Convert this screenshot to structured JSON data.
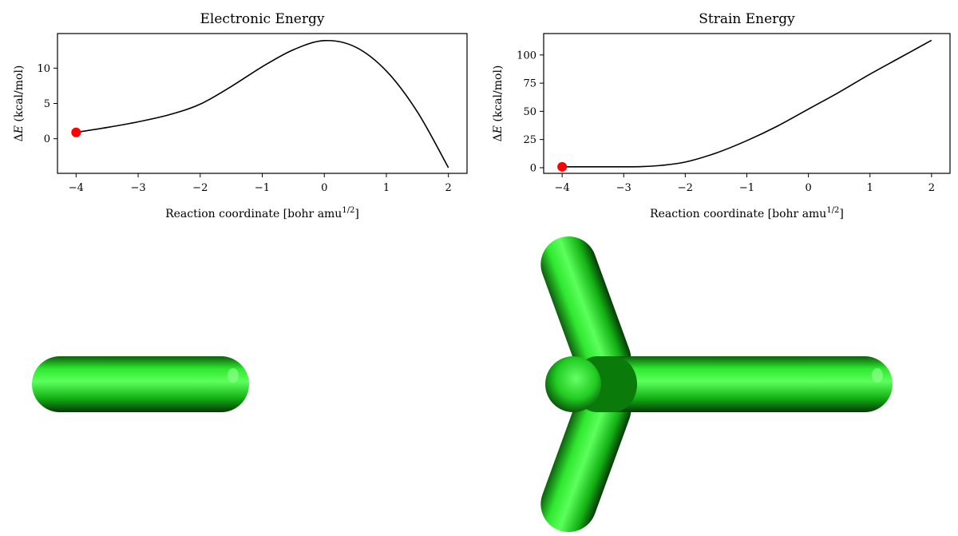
{
  "chart_data": [
    {
      "type": "line",
      "title": "Electronic Energy",
      "xlabel": "Reaction coordinate [bohr amu",
      "xlabel_sup": "1/2",
      "xlabel_end": "]",
      "ylabel_delta": "Δ",
      "ylabel_var": "E",
      "ylabel_unit": " (kcal/mol)",
      "xlim": [
        -4.3,
        2.3
      ],
      "ylim": [
        -4.9,
        14.9
      ],
      "xticks": [
        -4,
        -3,
        -2,
        -1,
        0,
        1,
        2
      ],
      "xtick_labels": [
        "−4",
        "−3",
        "−2",
        "−1",
        "0",
        "1",
        "2"
      ],
      "yticks": [
        0,
        5,
        10
      ],
      "ytick_labels": [
        "0",
        "5",
        "10"
      ],
      "series": [
        {
          "x": [
            -4.0,
            -3.5,
            -3.0,
            -2.5,
            -2.0,
            -1.5,
            -1.0,
            -0.5,
            0.0,
            0.5,
            1.0,
            1.5,
            2.0
          ],
          "y": [
            0.9,
            1.6,
            2.4,
            3.4,
            4.9,
            7.4,
            10.2,
            12.6,
            13.9,
            13.0,
            9.6,
            3.8,
            -4.1
          ]
        }
      ],
      "marker": {
        "x": -4.0,
        "y": 0.9
      },
      "line_color": "#000000",
      "marker_color": "#ff0000"
    },
    {
      "type": "line",
      "title": "Strain Energy",
      "xlabel": "Reaction coordinate [bohr amu",
      "xlabel_sup": "1/2",
      "xlabel_end": "]",
      "ylabel_delta": "Δ",
      "ylabel_var": "E",
      "ylabel_unit": " (kcal/mol)",
      "xlim": [
        -4.3,
        2.3
      ],
      "ylim": [
        -5,
        119
      ],
      "xticks": [
        -4,
        -3,
        -2,
        -1,
        0,
        1,
        2
      ],
      "xtick_labels": [
        "−4",
        "−3",
        "−2",
        "−1",
        "0",
        "1",
        "2"
      ],
      "yticks": [
        0,
        25,
        50,
        75,
        100
      ],
      "ytick_labels": [
        "0",
        "25",
        "50",
        "75",
        "100"
      ],
      "series": [
        {
          "x": [
            -4.0,
            -3.5,
            -3.0,
            -2.7,
            -2.4,
            -2.0,
            -1.5,
            -1.0,
            -0.5,
            0.0,
            0.5,
            1.0,
            1.5,
            2.0
          ],
          "y": [
            0.8,
            0.8,
            0.8,
            1.0,
            2.0,
            5.0,
            13.0,
            24.0,
            37.0,
            52.0,
            67.0,
            83.0,
            98.0,
            113.0
          ]
        }
      ],
      "marker": {
        "x": -4.0,
        "y": 0.8
      },
      "line_color": "#000000",
      "marker_color": "#ff0000"
    }
  ],
  "molecule_color": "#22dd22",
  "molecule_dark": "#0a7a0a"
}
